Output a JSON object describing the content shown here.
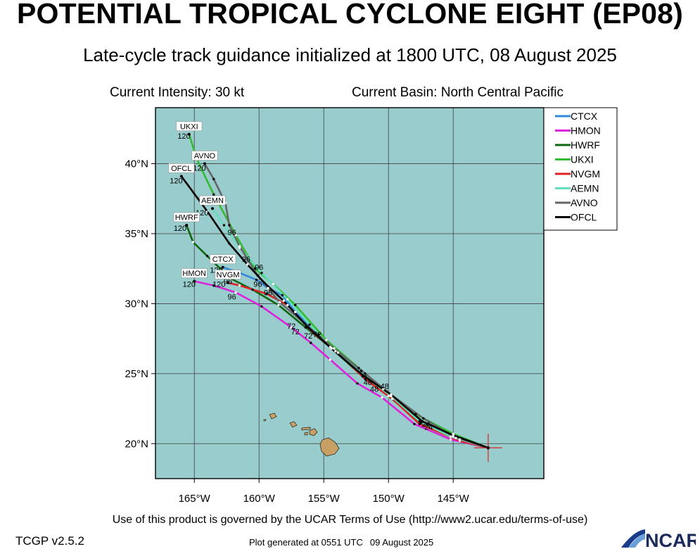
{
  "header": {
    "title": "POTENTIAL TROPICAL CYCLONE EIGHT (EP08)",
    "subtitle": "Late-cycle track guidance initialized at 1800 UTC, 08 August 2025",
    "current_intensity": "Current Intensity: 30 kt",
    "current_basin": "Current Basin: North Central Pacific"
  },
  "footer": {
    "terms": "Use of this product is governed by the UCAR Terms of Use (http://www2.ucar.edu/terms-of-use)",
    "version": "TCGP v2.5.2",
    "generated_label": "Plot generated at 0551 UTC",
    "generated_date": "09 August 2025",
    "logo_text": "NCAR"
  },
  "colors": {
    "ocean": "#99CCCC",
    "land": "#C8A064",
    "grid": "#404040"
  },
  "chart_data": {
    "type": "map-tracks",
    "lon_range": [
      -168,
      -138
    ],
    "lat_range": [
      17.5,
      44
    ],
    "lon_ticks": [
      {
        "value": -165,
        "label": "165°W"
      },
      {
        "value": -160,
        "label": "160°W"
      },
      {
        "value": -155,
        "label": "155°W"
      },
      {
        "value": -150,
        "label": "150°W"
      },
      {
        "value": -145,
        "label": "145°W"
      }
    ],
    "lat_ticks": [
      {
        "value": 20,
        "label": "20°N"
      },
      {
        "value": 25,
        "label": "25°N"
      },
      {
        "value": 30,
        "label": "30°N"
      },
      {
        "value": 35,
        "label": "35°N"
      },
      {
        "value": 40,
        "label": "40°N"
      }
    ],
    "grid": true,
    "legend_position": "right",
    "initial_position": {
      "lon": -142.3,
      "lat": 19.7
    },
    "series": [
      {
        "name": "CTCX",
        "color": "#3388DD",
        "end_label": "CTCX",
        "points": [
          [
            -142.3,
            19.7
          ],
          [
            -144.5,
            20.3
          ],
          [
            -147.4,
            21.6
          ],
          [
            -149.8,
            23.4
          ],
          [
            -152.1,
            25.2
          ],
          [
            -154.2,
            26.8
          ],
          [
            -155.4,
            27.8
          ],
          [
            -157.2,
            29.4
          ],
          [
            -158.2,
            30.6
          ],
          [
            -159.3,
            31.1
          ],
          [
            -160.2,
            31.7
          ],
          [
            -161.5,
            32.2
          ],
          [
            -162.8,
            32.6
          ]
        ],
        "hour_labels": [
          {
            "text": "24",
            "lon": -147.1,
            "lat": 21.2
          },
          {
            "text": "48",
            "lon": -151.6,
            "lat": 24.2
          },
          {
            "text": "72",
            "lon": -156.2,
            "lat": 27.5
          },
          {
            "text": "96",
            "lon": -160.1,
            "lat": 31.2
          },
          {
            "text": "120",
            "lon": -163.3,
            "lat": 32.2
          }
        ]
      },
      {
        "name": "HMON",
        "color": "#DD22DD",
        "end_label": "HMON",
        "points": [
          [
            -142.3,
            19.7
          ],
          [
            -145.2,
            20.3
          ],
          [
            -148.0,
            21.4
          ],
          [
            -150.5,
            23.3
          ],
          [
            -152.4,
            24.3
          ],
          [
            -154.5,
            26.0
          ],
          [
            -156.0,
            27.2
          ],
          [
            -157.5,
            28.3
          ],
          [
            -159.8,
            29.8
          ],
          [
            -161.8,
            30.8
          ],
          [
            -163.5,
            31.3
          ],
          [
            -165.0,
            31.6
          ]
        ],
        "hour_labels": [
          {
            "text": "48",
            "lon": -151.1,
            "lat": 23.7
          },
          {
            "text": "72",
            "lon": -157.2,
            "lat": 27.8
          },
          {
            "text": "96",
            "lon": -162.1,
            "lat": 30.3
          },
          {
            "text": "120",
            "lon": -165.4,
            "lat": 31.2
          }
        ]
      },
      {
        "name": "HWRF",
        "color": "#116611",
        "end_label": "HWRF",
        "points": [
          [
            -142.3,
            19.7
          ],
          [
            -144.8,
            20.4
          ],
          [
            -147.5,
            21.5
          ],
          [
            -150.0,
            23.4
          ],
          [
            -152.0,
            24.8
          ],
          [
            -154.5,
            26.9
          ],
          [
            -156.4,
            28.3
          ],
          [
            -158.5,
            29.9
          ],
          [
            -160.5,
            31.0
          ],
          [
            -162.2,
            31.8
          ],
          [
            -164.0,
            33.4
          ],
          [
            -165.1,
            34.4
          ],
          [
            -165.6,
            35.6
          ]
        ],
        "hour_labels": [
          {
            "text": "72",
            "lon": -157.5,
            "lat": 28.2
          },
          {
            "text": "120",
            "lon": -166.1,
            "lat": 35.2
          }
        ]
      },
      {
        "name": "UKXI",
        "color": "#33BB33",
        "end_label": "UKXI",
        "points": [
          [
            -142.3,
            19.7
          ],
          [
            -145.0,
            20.7
          ],
          [
            -147.9,
            22.1
          ],
          [
            -150.4,
            23.9
          ],
          [
            -152.3,
            25.4
          ],
          [
            -154.8,
            27.4
          ],
          [
            -157.2,
            29.9
          ],
          [
            -158.9,
            31.4
          ],
          [
            -160.3,
            32.5
          ],
          [
            -161.8,
            34.9
          ],
          [
            -163.5,
            37.8
          ],
          [
            -164.8,
            40.3
          ],
          [
            -165.4,
            42.1
          ]
        ],
        "hour_labels": [
          {
            "text": "120",
            "lon": -165.8,
            "lat": 41.8
          }
        ]
      },
      {
        "name": "NVGM",
        "color": "#DD2222",
        "end_label": "NVGM",
        "points": [
          [
            -142.3,
            19.7
          ],
          [
            -144.5,
            20.2
          ],
          [
            -147.6,
            21.4
          ],
          [
            -149.7,
            23.2
          ],
          [
            -151.8,
            24.6
          ],
          [
            -153.9,
            26.5
          ],
          [
            -155.8,
            27.9
          ],
          [
            -157.8,
            29.9
          ],
          [
            -159.4,
            30.7
          ],
          [
            -161.5,
            31.3
          ],
          [
            -162.4,
            31.5
          ]
        ],
        "hour_labels": [
          {
            "text": "96",
            "lon": -159.3,
            "lat": 30.6
          },
          {
            "text": "96",
            "lon": -162.4,
            "lat": 31.4
          },
          {
            "text": "120",
            "lon": -163.1,
            "lat": 31.2
          }
        ]
      },
      {
        "name": "AEMN",
        "color": "#66DDBB",
        "end_label": "AEMN",
        "points": [
          [
            -142.3,
            19.7
          ],
          [
            -145.2,
            20.5
          ],
          [
            -147.6,
            21.6
          ],
          [
            -149.8,
            23.4
          ],
          [
            -151.8,
            24.8
          ],
          [
            -154.1,
            26.6
          ],
          [
            -156.1,
            28.5
          ],
          [
            -157.8,
            30.3
          ],
          [
            -159.8,
            32.2
          ],
          [
            -161.5,
            34.0
          ],
          [
            -162.7,
            35.6
          ],
          [
            -163.6,
            36.8
          ]
        ],
        "hour_labels": [
          {
            "text": "120",
            "lon": -164.4,
            "lat": 36.3
          }
        ]
      },
      {
        "name": "AVNO",
        "color": "#666666",
        "end_label": "AVNO",
        "points": [
          [
            -142.3,
            19.7
          ],
          [
            -145.0,
            20.5
          ],
          [
            -147.3,
            21.8
          ],
          [
            -149.8,
            23.5
          ],
          [
            -151.8,
            25.0
          ],
          [
            -154.2,
            26.8
          ],
          [
            -156.5,
            28.6
          ],
          [
            -158.4,
            30.1
          ],
          [
            -160.1,
            32.0
          ],
          [
            -161.5,
            34.1
          ],
          [
            -162.3,
            35.6
          ],
          [
            -162.6,
            37.2
          ],
          [
            -163.5,
            38.9
          ],
          [
            -164.2,
            40.0
          ]
        ],
        "hour_labels": [
          {
            "text": "96",
            "lon": -162.1,
            "lat": 34.9
          },
          {
            "text": "120",
            "lon": -164.6,
            "lat": 39.5
          }
        ]
      },
      {
        "name": "OFCL",
        "color": "#000000",
        "end_label": "OFCL",
        "points": [
          [
            -142.3,
            19.7
          ],
          [
            -145.0,
            20.6
          ],
          [
            -147.4,
            21.6
          ],
          [
            -149.8,
            23.5
          ],
          [
            -152.0,
            24.9
          ],
          [
            -154.4,
            26.8
          ],
          [
            -156.2,
            28.3
          ],
          [
            -158.1,
            30.2
          ],
          [
            -159.6,
            31.5
          ],
          [
            -160.9,
            32.8
          ],
          [
            -162.3,
            34.3
          ],
          [
            -164.0,
            36.6
          ],
          [
            -166.0,
            39.1
          ]
        ],
        "hour_labels": [
          {
            "text": "24",
            "lon": -146.9,
            "lat": 21.0
          },
          {
            "text": "48",
            "lon": -150.3,
            "lat": 23.9
          },
          {
            "text": "72",
            "lon": -155.5,
            "lat": 27.6
          },
          {
            "text": "96",
            "lon": -161.0,
            "lat": 33.0
          },
          {
            "text": "96",
            "lon": -160.0,
            "lat": 32.4
          },
          {
            "text": "120",
            "lon": -166.4,
            "lat": 38.6
          }
        ]
      }
    ]
  }
}
